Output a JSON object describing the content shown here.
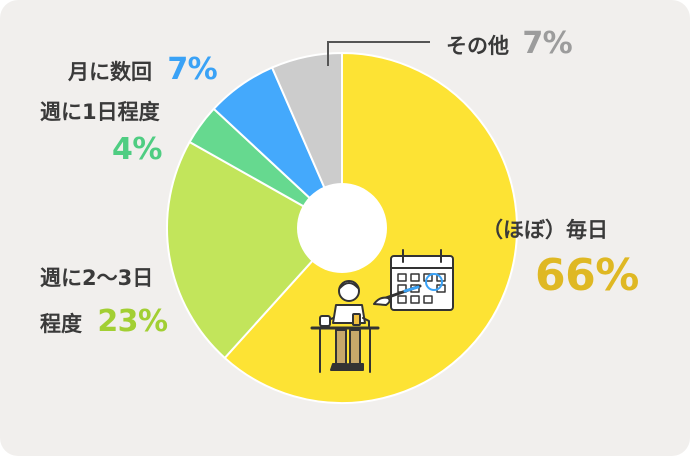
{
  "chart_data": {
    "type": "pie",
    "donut": true,
    "slices": [
      {
        "name_lines": [
          "（ほぼ）毎日"
        ],
        "value": 66,
        "pct_label": "66%",
        "color": "#fde334",
        "pct_color": "#dfb823"
      },
      {
        "name_lines": [
          "週に2〜3日",
          "程度"
        ],
        "value": 23,
        "pct_label": "23%",
        "color": "#c2e55b",
        "pct_color": "#a2cf33"
      },
      {
        "name_lines": [
          "週に1日程度"
        ],
        "value": 4,
        "pct_label": "4%",
        "color": "#66d98f",
        "pct_color": "#4fcd82"
      },
      {
        "name_lines": [
          "月に数回"
        ],
        "value": 7,
        "pct_label": "7%",
        "color": "#44a9fc",
        "pct_color": "#3aa2f6"
      },
      {
        "name_lines": [
          "その他"
        ],
        "value": 7,
        "pct_label": "7%",
        "color": "#cccccc",
        "pct_color": "#9c9c9c"
      }
    ]
  }
}
